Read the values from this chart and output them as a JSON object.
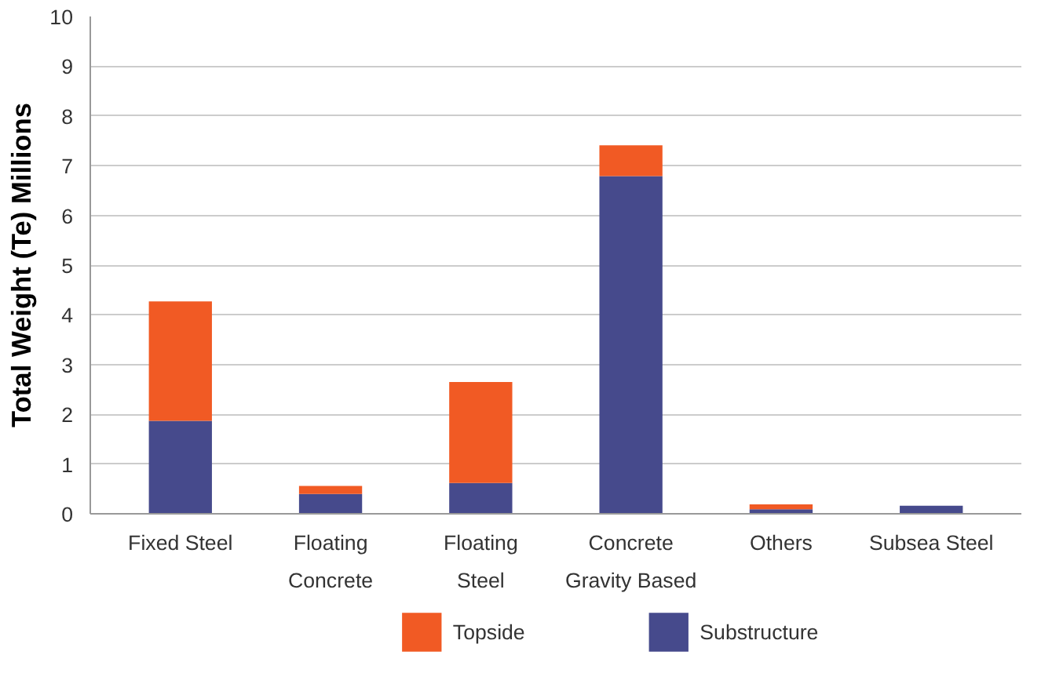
{
  "chart_data": {
    "type": "bar",
    "stacked": true,
    "ylabel": "Total Weight (Te) Millions",
    "categories": [
      "Fixed Steel",
      "Floating\nConcrete",
      "Floating\nSteel",
      "Concrete\nGravity Based",
      "Others",
      "Subsea Steel"
    ],
    "series": [
      {
        "name": "Substructure",
        "color": "#464a8c",
        "values": [
          1.87,
          0.4,
          0.62,
          6.79,
          0.09,
          0.16
        ]
      },
      {
        "name": "Topside",
        "color": "#f15a24",
        "values": [
          2.4,
          0.16,
          2.03,
          0.62,
          0.1,
          0
        ]
      }
    ],
    "ylim": [
      0,
      10
    ],
    "yticks": [
      0,
      1,
      2,
      3,
      4,
      5,
      6,
      7,
      8,
      9,
      10
    ],
    "grid": "y",
    "legend": "bottom"
  }
}
